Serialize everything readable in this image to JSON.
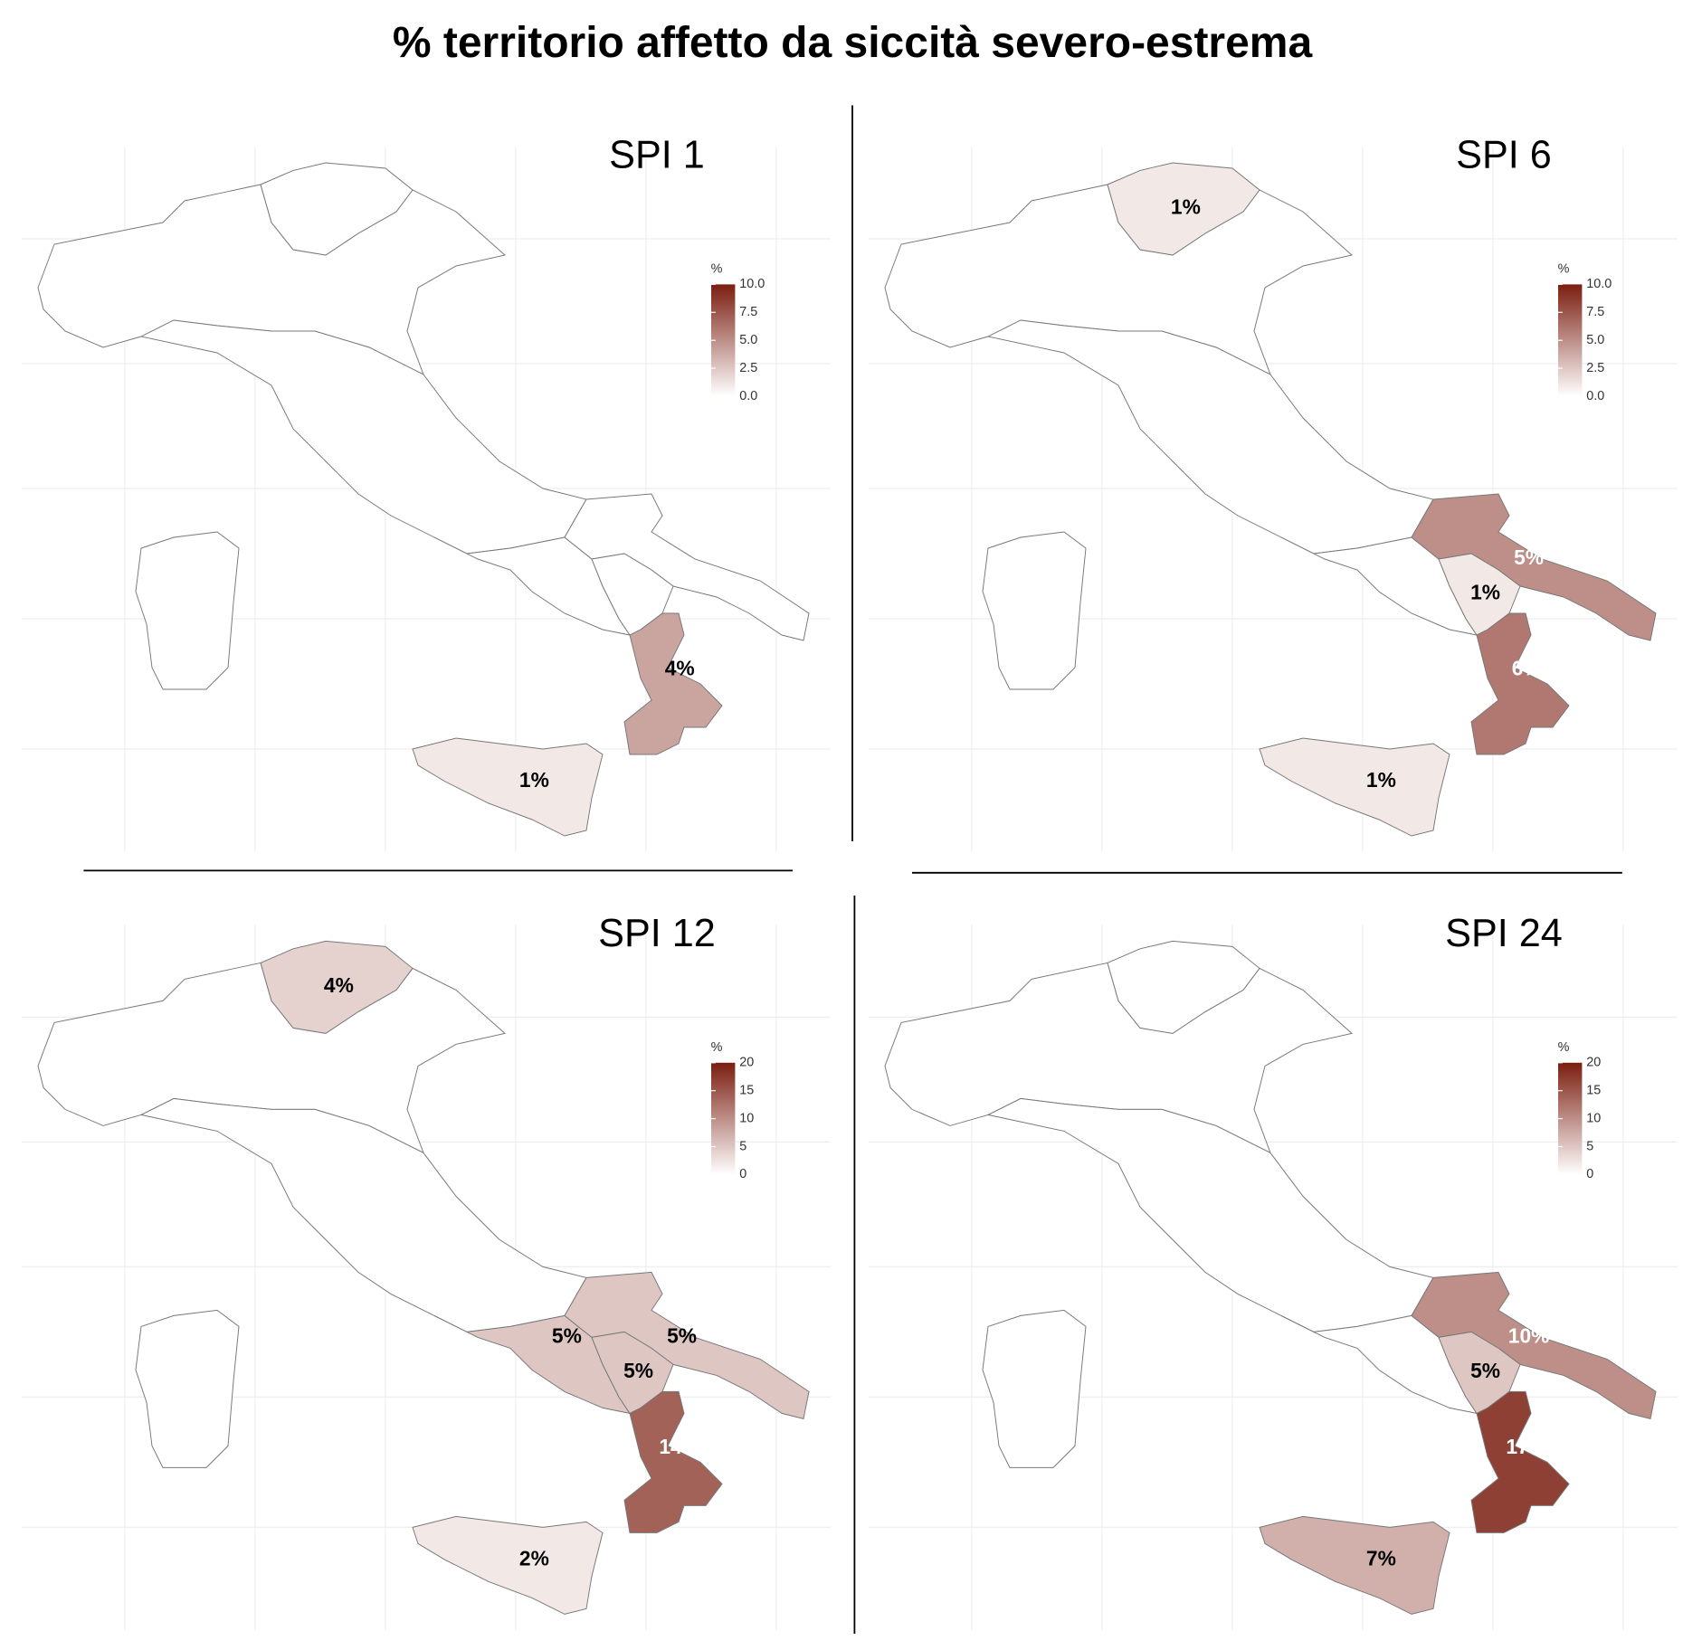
{
  "title": "% territorio affetto da siccità severo-estrema",
  "colors": [
    "#ffffff",
    "#7b1e10"
  ],
  "panels": [
    {
      "title": "SPI 1",
      "legend": {
        "title": "%",
        "lim": [
          0,
          10
        ],
        "ticks": [
          {
            "value": 0,
            "label": "0.0"
          },
          2.5,
          {
            "value": 5,
            "label": "5.0"
          },
          7.5,
          {
            "value": 10,
            "label": "10.0"
          }
        ]
      },
      "values": [
        4,
        1
      ],
      "value_labels": [
        "4%",
        "1%"
      ]
    },
    {
      "title": "SPI 6",
      "legend": {
        "title": "%",
        "lim": [
          0,
          10
        ],
        "ticks": [
          {
            "value": 0,
            "label": "0.0"
          },
          2.5,
          {
            "value": 5,
            "label": "5.0"
          },
          7.5,
          {
            "value": 10,
            "label": "10.0"
          }
        ]
      },
      "values": [
        1,
        5,
        1,
        6,
        1
      ],
      "value_labels": [
        "1%",
        "5%",
        "1%",
        "6%",
        "1%"
      ]
    },
    {
      "title": "SPI 12",
      "legend": {
        "title": "%",
        "lim": [
          0,
          20
        ],
        "ticks": [
          0,
          5,
          10,
          15,
          20
        ]
      },
      "values": [
        4,
        5,
        5,
        5,
        14,
        2
      ],
      "value_labels": [
        "4%",
        "5%",
        "5%",
        "5%",
        "14%",
        "2%"
      ]
    },
    {
      "title": "SPI 24",
      "legend": {
        "title": "%",
        "lim": [
          0,
          20
        ],
        "ticks": [
          0,
          5,
          10,
          15,
          20
        ]
      },
      "values": [
        10,
        5,
        17,
        7
      ],
      "value_labels": [
        "10%",
        "5%",
        "17%",
        "7%"
      ]
    }
  ]
}
